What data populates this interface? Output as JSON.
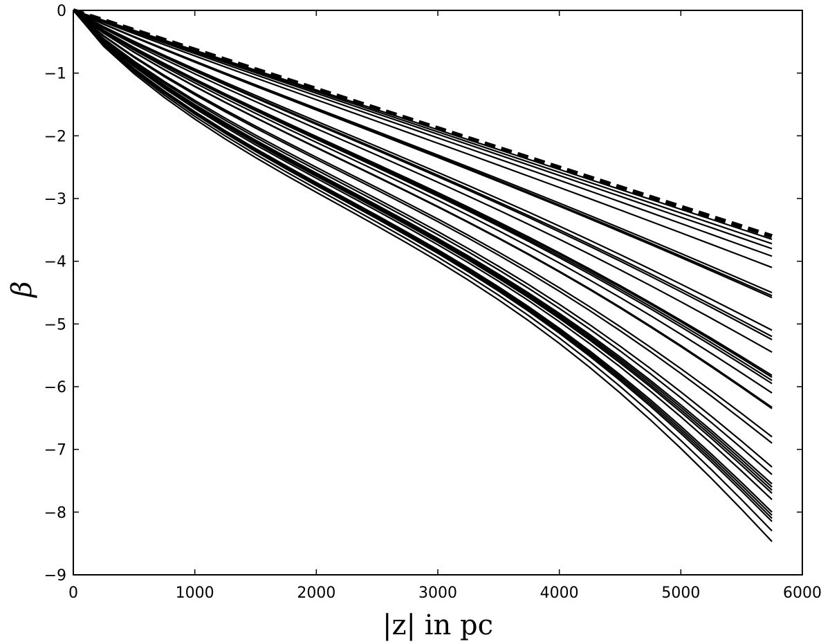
{
  "chart_data": {
    "type": "line",
    "title": "",
    "xlabel": "|z| in pc",
    "ylabel": "β",
    "xlim": [
      0,
      6000
    ],
    "ylim": [
      -9,
      0
    ],
    "grid": false,
    "x_ticks": [
      0,
      1000,
      2000,
      3000,
      4000,
      5000,
      6000
    ],
    "y_ticks": [
      0,
      -1,
      -2,
      -3,
      -4,
      -5,
      -6,
      -7,
      -8,
      -9
    ],
    "x_tick_labels": [
      "0",
      "1000",
      "2000",
      "3000",
      "4000",
      "5000",
      "6000"
    ],
    "y_tick_labels": [
      "0",
      "−1",
      "−2",
      "−3",
      "−4",
      "−5",
      "−6",
      "−7",
      "−8",
      "−9"
    ],
    "x": [
      0,
      250,
      500,
      750,
      1000,
      1250,
      1500,
      1750,
      2000,
      2250,
      2500,
      2750,
      3000,
      3250,
      3500,
      3750,
      4000,
      4250,
      4500,
      4750,
      5000,
      5250,
      5500,
      5750
    ],
    "reference_series": {
      "style": "dashed",
      "slope_per_pc": -0.000626,
      "end_value": -3.6
    },
    "series_end_values": [
      -3.65,
      -3.72,
      -3.8,
      -3.92,
      -4.1,
      -4.5,
      -4.55,
      -4.58,
      -5.1,
      -5.2,
      -5.25,
      -5.45,
      -5.82,
      -5.85,
      -5.9,
      -5.95,
      -6.1,
      -6.33,
      -6.35,
      -6.8,
      -6.9,
      -7.28,
      -7.4,
      -7.55,
      -7.6,
      -7.65,
      -7.7,
      -7.8,
      -8.0,
      -8.05,
      -8.1,
      -8.15,
      -8.3,
      -8.47
    ]
  }
}
